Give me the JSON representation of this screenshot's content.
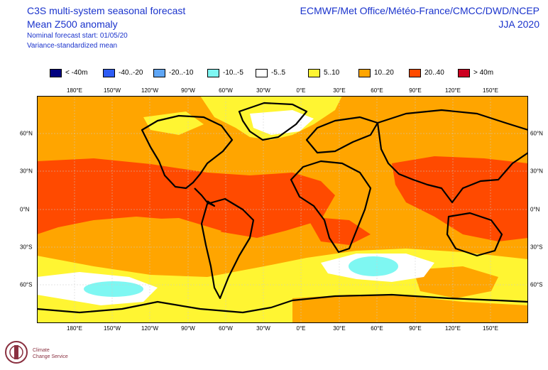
{
  "title": {
    "line1": "C3S multi-system seasonal forecast",
    "line2": "Mean Z500 anomaly",
    "line3": "Nominal forecast start: 01/05/20",
    "line4": "Variance-standardized mean"
  },
  "centres": "ECMWF/Met Office/Météo-France/CMCC/DWD/NCEP",
  "season": "JJA 2020",
  "legend": [
    {
      "label": "< -40m",
      "color": "#00007f"
    },
    {
      "label": "-40..-20",
      "color": "#2e5cf5"
    },
    {
      "label": "-20..-10",
      "color": "#5fa6f5"
    },
    {
      "label": "-10..-5",
      "color": "#7ef7f2"
    },
    {
      "label": "-5..5",
      "color": "#ffffff"
    },
    {
      "label": "5..10",
      "color": "#fff532"
    },
    {
      "label": "10..20",
      "color": "#ffa500"
    },
    {
      "label": "20..40",
      "color": "#ff4a00"
    },
    {
      "label": "> 40m",
      "color": "#cc0020"
    }
  ],
  "lon_ticks": [
    "180°E",
    "150°W",
    "120°W",
    "90°W",
    "60°W",
    "30°W",
    "0°E",
    "30°E",
    "60°E",
    "90°E",
    "120°E",
    "150°E"
  ],
  "lat_ticks": [
    "60°N",
    "30°N",
    "0°N",
    "30°S",
    "60°S"
  ],
  "logo": {
    "line1": "Climate",
    "line2": "Change Service"
  }
}
